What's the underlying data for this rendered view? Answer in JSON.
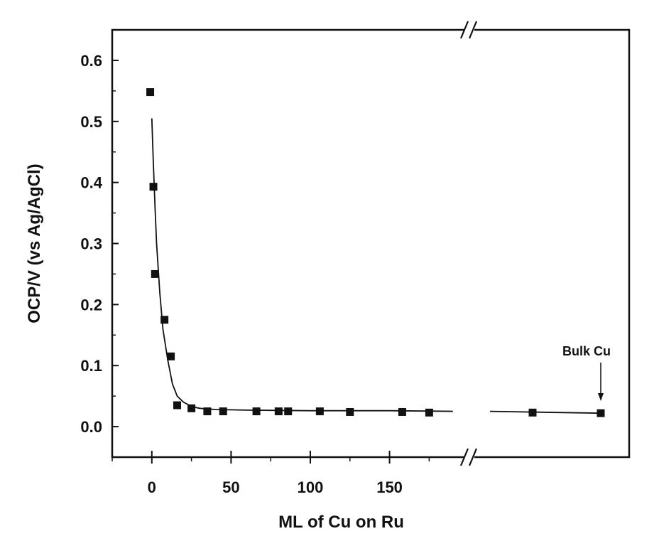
{
  "chart_data": {
    "type": "scatter",
    "title": "",
    "xlabel": "ML of Cu on Ru",
    "ylabel": "OCP/V (vs Ag/AgCl)",
    "xlim": [
      -25,
      195
    ],
    "ylim": [
      -0.05,
      0.65
    ],
    "x_ticks": [
      0,
      50,
      100,
      150
    ],
    "x_tick_labels": [
      "0",
      "50",
      "100",
      "150"
    ],
    "y_ticks": [
      0.0,
      0.1,
      0.2,
      0.3,
      0.4,
      0.5,
      0.6
    ],
    "y_tick_labels": [
      "0.0",
      "0.1",
      "0.2",
      "0.3",
      "0.4",
      "0.5",
      "0.6"
    ],
    "axis_break": "//",
    "grid": false,
    "marker": "square",
    "marker_color": "#111111",
    "series": [
      {
        "x": [
          -1,
          1,
          2,
          8,
          12,
          16,
          25,
          35,
          45,
          66,
          80,
          86,
          106,
          125,
          158,
          175
        ],
        "y": [
          0.548,
          0.393,
          0.25,
          0.175,
          0.115,
          0.035,
          0.03,
          0.025,
          0.025,
          0.025,
          0.025,
          0.025,
          0.025,
          0.024,
          0.024,
          0.023
        ]
      }
    ],
    "after_break_points": [
      {
        "y": 0.023
      },
      {
        "label": "Bulk Cu",
        "y": 0.022
      }
    ],
    "fit_curve": {
      "x": [
        0,
        1,
        2,
        3,
        5,
        7,
        10,
        13,
        16,
        20,
        25,
        30,
        40,
        60,
        100,
        150,
        190
      ],
      "y": [
        0.505,
        0.43,
        0.36,
        0.3,
        0.22,
        0.16,
        0.11,
        0.07,
        0.05,
        0.04,
        0.033,
        0.03,
        0.028,
        0.027,
        0.026,
        0.026,
        0.025
      ]
    },
    "annotations": [
      {
        "text": "Bulk Cu",
        "points_to": "Bulk Cu"
      }
    ]
  }
}
